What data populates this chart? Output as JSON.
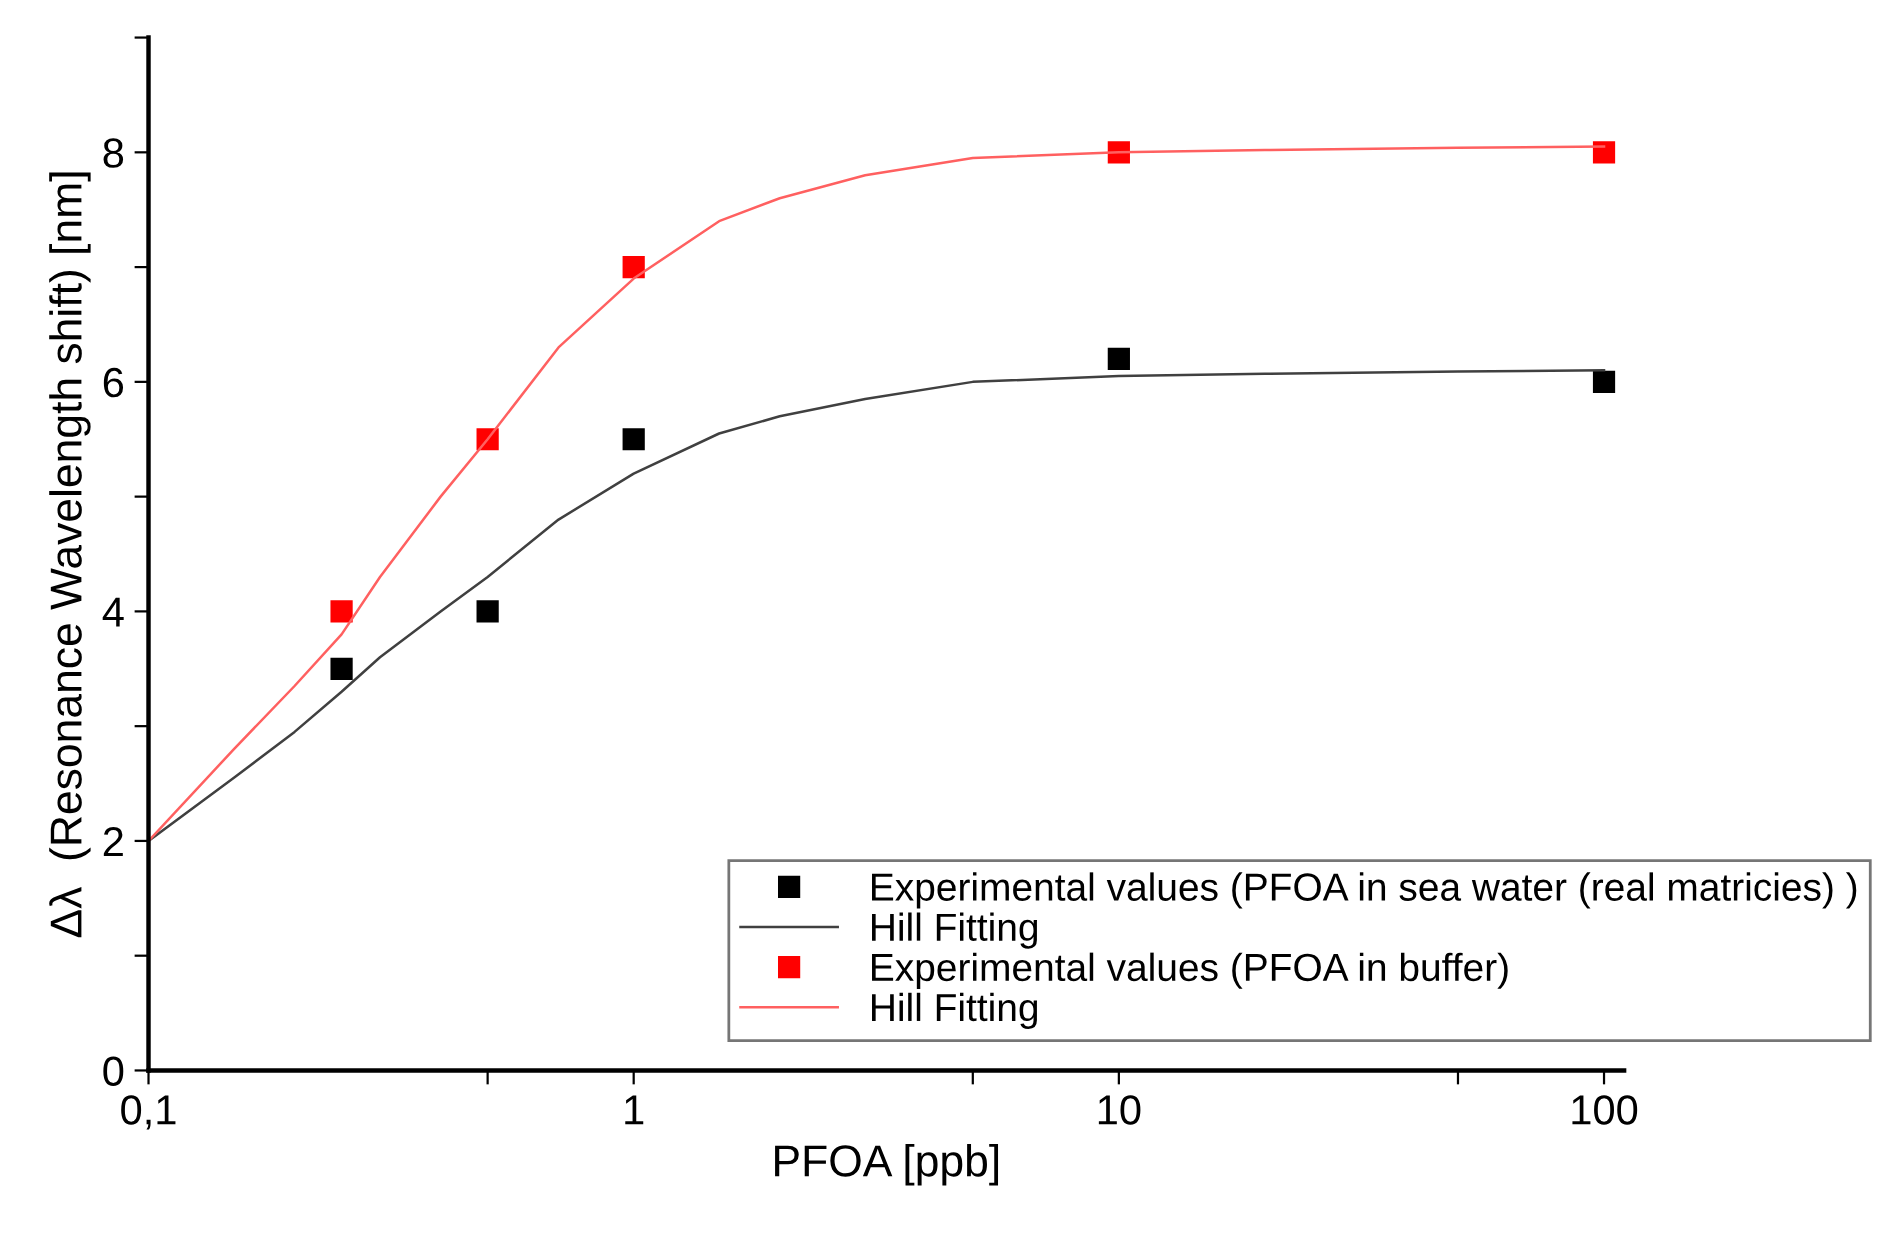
{
  "chart_data": {
    "type": "scatter",
    "xlabel": "PFOA [ppb]",
    "ylabel": "Δλ  (Resonance Wavelength shift) [nm]",
    "log": "x",
    "xlim": [
      0.1,
      110
    ],
    "xticks": [
      {
        "value": 0.1,
        "label": "0,1"
      },
      {
        "value": 0.5,
        "label": null
      },
      1,
      {
        "value": 5,
        "label": null
      },
      10,
      {
        "value": 50,
        "label": null
      },
      100
    ],
    "ylim": [
      0,
      9
    ],
    "yticks": [
      0,
      {
        "value": 1,
        "label": null
      },
      2,
      {
        "value": 3,
        "label": null
      },
      4,
      {
        "value": 5,
        "label": null
      },
      6,
      {
        "value": 7,
        "label": null
      },
      8,
      {
        "value": 9,
        "label": null
      }
    ],
    "grid": false,
    "legend": "bottom right",
    "series": [
      {
        "name": "Experimental values (PFOA in sea water (real matricies) )",
        "marker": "square",
        "color": "#000000",
        "x": [
          0.25,
          0.5,
          1,
          10,
          100
        ],
        "values": [
          3.5,
          4.0,
          5.5,
          6.2,
          6.0
        ]
      },
      {
        "name": "Hill Fitting",
        "type": "line",
        "color": "#404040",
        "x": [
          0.1,
          0.15,
          0.2,
          0.25,
          0.3,
          0.4,
          0.5,
          0.7,
          1,
          1.5,
          2,
          3,
          5,
          10,
          20,
          50,
          100
        ],
        "values": [
          2.0,
          2.55,
          2.95,
          3.3,
          3.6,
          4.0,
          4.3,
          4.8,
          5.2,
          5.55,
          5.7,
          5.85,
          6.0,
          6.05,
          6.07,
          6.09,
          6.1
        ]
      },
      {
        "name": "Experimental values (PFOA in buffer)",
        "marker": "square",
        "color": "#ff0000",
        "x": [
          0.25,
          0.5,
          1,
          10,
          100
        ],
        "values": [
          4.0,
          5.5,
          7.0,
          8.0,
          8.0
        ]
      },
      {
        "name": "Hill Fitting",
        "type": "line",
        "color": "#ff6060",
        "x": [
          0.1,
          0.15,
          0.2,
          0.25,
          0.3,
          0.4,
          0.5,
          0.7,
          1,
          1.5,
          2,
          3,
          5,
          10,
          20,
          50,
          100
        ],
        "values": [
          2.0,
          2.8,
          3.35,
          3.8,
          4.3,
          5.0,
          5.5,
          6.3,
          6.9,
          7.4,
          7.6,
          7.8,
          7.95,
          8.0,
          8.02,
          8.04,
          8.05
        ]
      }
    ]
  }
}
